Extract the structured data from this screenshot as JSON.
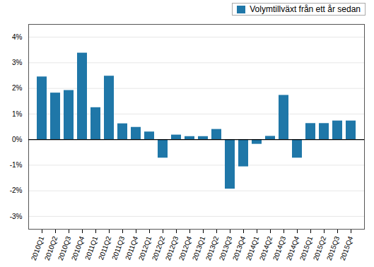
{
  "chart_data": {
    "type": "bar",
    "categories": [
      "2010Q1",
      "2010Q2",
      "2010Q3",
      "2010Q4",
      "2011Q1",
      "2011Q2",
      "2011Q3",
      "2011Q4",
      "2012Q1",
      "2012Q2",
      "2012Q3",
      "2012Q4",
      "2013Q1",
      "2013Q2",
      "2013Q3",
      "2013Q4",
      "2014Q1",
      "2014Q2",
      "2014Q3",
      "2014Q4",
      "2015Q1",
      "2015Q2",
      "2015Q3",
      "2015Q4"
    ],
    "series": [
      {
        "name": "Volymtillväxt från ett år sedan",
        "color": "#1f77a8",
        "values": [
          2.45,
          1.82,
          1.92,
          3.38,
          1.25,
          2.48,
          0.62,
          0.48,
          0.3,
          -0.72,
          0.18,
          0.12,
          0.12,
          0.4,
          -1.93,
          -1.06,
          -0.18,
          0.13,
          1.73,
          -0.72,
          0.63,
          0.63,
          0.73,
          0.73
        ]
      }
    ],
    "ylim": [
      -3.5,
      4.5
    ],
    "yticks": [
      {
        "value": -3,
        "label": "-3%"
      },
      {
        "value": -2,
        "label": "-2%"
      },
      {
        "value": -1,
        "label": "-1%"
      },
      {
        "value": 0,
        "label": "0%"
      },
      {
        "value": 1,
        "label": "1%"
      },
      {
        "value": 2,
        "label": "2%"
      },
      {
        "value": 3,
        "label": "3%"
      },
      {
        "value": 4,
        "label": "4%"
      }
    ],
    "grid": true,
    "legend": "upper right"
  }
}
